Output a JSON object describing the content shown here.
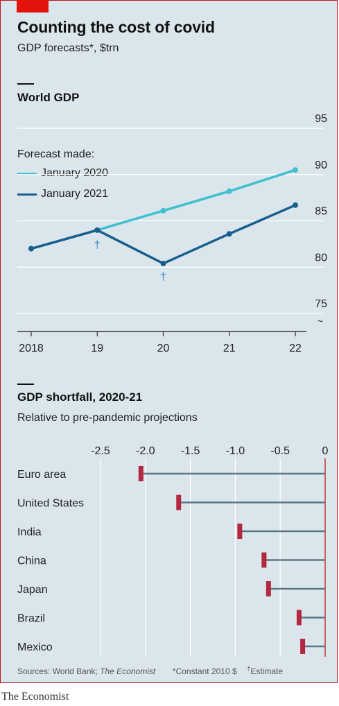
{
  "title": "Counting the cost of covid",
  "subtitle": "GDP forecasts*, $trn",
  "brand": "The Economist",
  "footer": {
    "sources_label": "Sources: World Bank;",
    "sources_italic": "The Economist",
    "note1": "*Constant 2010 $",
    "note2_mark": "†",
    "note2": "Estimate"
  },
  "colors": {
    "background": "#dbe6ec",
    "accent_red": "#e3120b",
    "series_2020": "#3fbfcf",
    "series_2021": "#1a5e8c",
    "bar_marker": "#b4283f",
    "bar_line": "#5c7583",
    "zero_line": "#c0392b"
  },
  "chart_data": [
    {
      "type": "line",
      "title": "World GDP",
      "legend_title": "Forecast made:",
      "legend_position": "top-left",
      "x": [
        2018,
        2019,
        2020,
        2021,
        2022
      ],
      "x_tick_labels": [
        "2018",
        "19",
        "20",
        "21",
        "22"
      ],
      "y_ticks": [
        75,
        80,
        85,
        90,
        95
      ],
      "y_tick_labels": [
        "75",
        "80",
        "85",
        "90",
        "95"
      ],
      "ylim": [
        72,
        95
      ],
      "y_axis_broken": true,
      "y_axis_side": "right",
      "grid": true,
      "series": [
        {
          "name": "January 2020",
          "color": "#3fbfcf",
          "values": [
            82.0,
            84.0,
            86.1,
            88.2,
            90.5
          ]
        },
        {
          "name": "January 2021",
          "color": "#1a5e8c",
          "values": [
            82.0,
            84.0,
            80.4,
            83.6,
            86.7
          ]
        }
      ],
      "annotations": [
        {
          "text": "†",
          "x": 2019
        },
        {
          "text": "†",
          "x": 2020
        }
      ]
    },
    {
      "type": "bar",
      "orientation": "horizontal",
      "title": "GDP shortfall, 2020-21",
      "subtitle": "Relative to pre-pandemic projections",
      "xlim": [
        -2.5,
        0
      ],
      "x_ticks": [
        -2.5,
        -2.0,
        -1.5,
        -1.0,
        -0.5,
        0
      ],
      "x_tick_labels": [
        "-2.5",
        "-2.0",
        "-1.5",
        "-1.0",
        "-0.5",
        "0"
      ],
      "x_axis_position": "top",
      "grid": true,
      "categories": [
        "Euro area",
        "United States",
        "India",
        "China",
        "Japan",
        "Brazil",
        "Mexico"
      ],
      "values": [
        -2.05,
        -1.63,
        -0.95,
        -0.68,
        -0.63,
        -0.29,
        -0.25
      ]
    }
  ]
}
